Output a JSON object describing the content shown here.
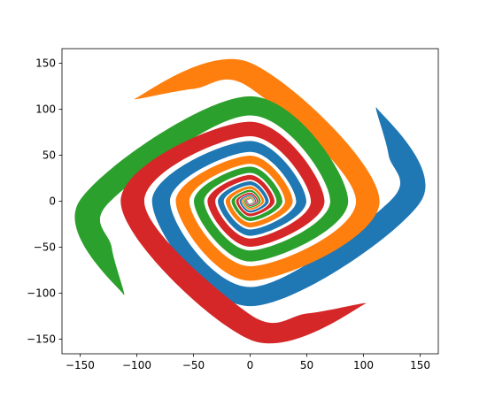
{
  "chart_data": {
    "type": "filled-polygon",
    "xlim": [
      -166,
      166
    ],
    "ylim": [
      -166,
      166
    ],
    "xticks": [
      {
        "value": -150,
        "label": "−150"
      },
      {
        "value": -100,
        "label": "−100"
      },
      {
        "value": -50,
        "label": "−50"
      },
      0,
      50,
      100,
      150
    ],
    "yticks": [
      {
        "value": -150,
        "label": "−150"
      },
      {
        "value": -100,
        "label": "−100"
      },
      {
        "value": -50,
        "label": "−50"
      },
      0,
      50,
      100,
      150
    ],
    "grid": false,
    "series": [
      {
        "color": "#1f77b4",
        "x": [
          -3.1,
          0,
          5.4,
          0,
          -9.4,
          0,
          16.4,
          0,
          -28.5,
          0,
          49.6,
          0,
          -86.5,
          0,
          150.7,
          112,
          122.1,
          123.3,
          0,
          -70.7,
          0,
          40.6,
          0,
          -23.3,
          0,
          13.4,
          0,
          -7.7,
          0,
          4.4,
          0,
          -2.5
        ],
        "y": [
          0,
          -4.1,
          0,
          7.2,
          0,
          -12.4,
          0,
          21.6,
          0,
          -37.6,
          0,
          65.6,
          0,
          -114.2,
          0,
          101,
          50.6,
          0,
          -93.4,
          0,
          53.6,
          0,
          -30.8,
          0,
          17.6,
          0,
          -10.2,
          0,
          5.9,
          0,
          -3.3,
          0
        ]
      },
      {
        "color": "#ff7f0e",
        "x": [
          0,
          4.1,
          0,
          -7.2,
          0,
          12.4,
          0,
          -21.6,
          0,
          37.6,
          0,
          -65.6,
          0,
          114.2,
          0,
          -101,
          -50.6,
          0,
          93.4,
          0,
          -53.6,
          0,
          30.8,
          0,
          -17.6,
          0,
          10.2,
          0,
          -5.9,
          0,
          3.3,
          0
        ],
        "y": [
          -3.1,
          0,
          5.4,
          0,
          -9.4,
          0,
          16.4,
          0,
          -28.5,
          0,
          49.6,
          0,
          -86.5,
          0,
          150.7,
          112,
          122.1,
          123.3,
          0,
          -70.7,
          0,
          40.6,
          0,
          -23.3,
          0,
          13.4,
          0,
          -7.7,
          0,
          4.4,
          0,
          -2.5
        ]
      },
      {
        "color": "#2ca02c",
        "x": [
          3.1,
          0,
          -5.4,
          0,
          9.4,
          0,
          -16.4,
          0,
          28.5,
          0,
          -49.6,
          0,
          86.5,
          0,
          -150.7,
          -112,
          -122.1,
          -123.3,
          0,
          70.7,
          0,
          -40.6,
          0,
          23.3,
          0,
          -13.4,
          0,
          7.7,
          0,
          -4.4,
          0,
          2.5
        ],
        "y": [
          0,
          4.1,
          0,
          -7.2,
          0,
          12.4,
          0,
          -21.6,
          0,
          37.6,
          0,
          -65.6,
          0,
          114.2,
          0,
          -101,
          -50.6,
          0,
          93.4,
          0,
          -53.6,
          0,
          30.8,
          0,
          -17.6,
          0,
          10.2,
          0,
          -5.9,
          0,
          3.3,
          0
        ]
      },
      {
        "color": "#d62728",
        "x": [
          0,
          -4.1,
          0,
          7.2,
          0,
          -12.4,
          0,
          21.6,
          0,
          -37.6,
          0,
          65.6,
          0,
          -114.2,
          0,
          101,
          50.6,
          0,
          -93.4,
          0,
          53.6,
          0,
          -30.8,
          0,
          17.6,
          0,
          -10.2,
          0,
          5.9,
          0,
          -3.3,
          0
        ],
        "y": [
          3.1,
          0,
          -5.4,
          0,
          9.4,
          0,
          -16.4,
          0,
          28.5,
          0,
          -49.6,
          0,
          86.5,
          0,
          -150.7,
          -112,
          -122.1,
          -123.3,
          0,
          70.7,
          0,
          -40.6,
          0,
          23.3,
          0,
          -13.4,
          0,
          7.7,
          0,
          -4.4,
          0,
          2.5
        ]
      }
    ]
  }
}
